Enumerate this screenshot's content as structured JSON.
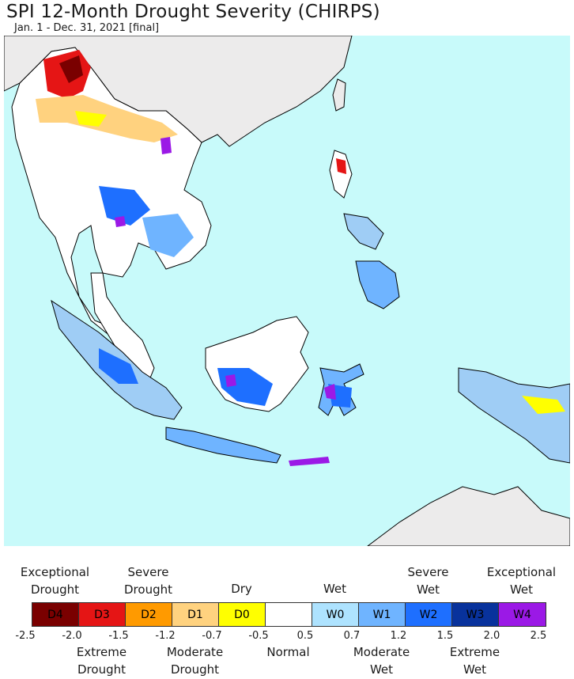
{
  "title": "SPI 12-Month Drought Severity (CHIRPS)",
  "subtitle": "Jan. 1 - Dec. 31, 2021 [final]",
  "legend": {
    "top_labels": [
      {
        "text": "Exceptional\nDrought",
        "center": 0
      },
      {
        "text": "Severe\nDrought",
        "center": 2
      },
      {
        "text": "Dry",
        "center": 4
      },
      {
        "text": "Wet",
        "center": 6
      },
      {
        "text": "Severe\nWet",
        "center": 8
      },
      {
        "text": "Exceptional\nWet",
        "center": 10
      }
    ],
    "cells": [
      {
        "label": "D4",
        "color": "#7a0000",
        "text_color": "#000000"
      },
      {
        "label": "D3",
        "color": "#e51515",
        "text_color": "#000000"
      },
      {
        "label": "D2",
        "color": "#ff9a00",
        "text_color": "#000000"
      },
      {
        "label": "D1",
        "color": "#ffd27f",
        "text_color": "#000000"
      },
      {
        "label": "D0",
        "color": "#ffff00",
        "text_color": "#000000"
      },
      {
        "label": "",
        "color": "#ffffff",
        "text_color": "#000000"
      },
      {
        "label": "W0",
        "color": "#aee3ff",
        "text_color": "#000000"
      },
      {
        "label": "W1",
        "color": "#6fb4ff",
        "text_color": "#000000"
      },
      {
        "label": "W2",
        "color": "#1e6fff",
        "text_color": "#000000"
      },
      {
        "label": "W3",
        "color": "#08329c",
        "text_color": "#000000"
      },
      {
        "label": "W4",
        "color": "#9b19e6",
        "text_color": "#000000"
      }
    ],
    "ticks": [
      "-2.5",
      "-2.0",
      "-1.5",
      "-1.2",
      "-0.7",
      "-0.5",
      "0.5",
      "0.7",
      "1.2",
      "1.5",
      "2.0",
      "2.5"
    ],
    "bottom_labels": [
      {
        "text": "Extreme\nDrought",
        "center": 1
      },
      {
        "text": "Moderate\nDrought",
        "center": 3
      },
      {
        "text": "Normal",
        "center": 5
      },
      {
        "text": "Moderate\nWet",
        "center": 7
      },
      {
        "text": "Extreme\nWet",
        "center": 9
      }
    ]
  },
  "map": {
    "ocean_color": "#c8fafa",
    "outside_land_color": "#ecebeb",
    "region": "Southeast Asia"
  }
}
